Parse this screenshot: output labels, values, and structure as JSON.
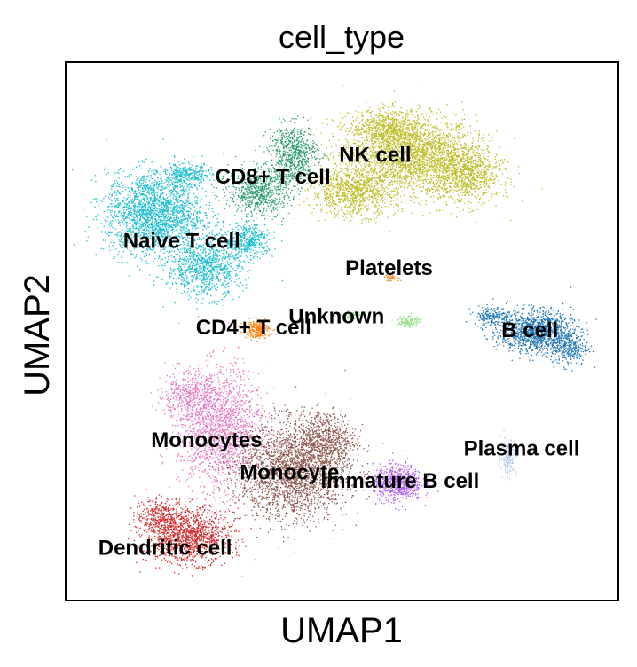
{
  "chart_data": {
    "type": "scatter",
    "title": "cell_type",
    "xlabel": "UMAP1",
    "ylabel": "UMAP2",
    "xlim": [
      0,
      100
    ],
    "ylim": [
      0,
      100
    ],
    "grid": false,
    "legend": "on data",
    "clusters": [
      {
        "name": "NK cell",
        "label_x": 56.0,
        "label_y": 82.5,
        "color": "#bcbd22"
      },
      {
        "name": "CD8+ T cell",
        "label_x": 37.5,
        "label_y": 78.5,
        "color": "#279e68"
      },
      {
        "name": "Naive T cell",
        "label_x": 21.0,
        "label_y": 66.5,
        "color": "#17becf"
      },
      {
        "name": "Platelets",
        "label_x": 58.5,
        "label_y": 61.5,
        "color": "#ff7f0e"
      },
      {
        "name": "Unknown",
        "label_x": 49.0,
        "label_y": 52.5,
        "color": "#98df8a"
      },
      {
        "name": "CD4+ T cell",
        "label_x": 34.0,
        "label_y": 50.5,
        "color": "#ff7f0e"
      },
      {
        "name": "B cell",
        "label_x": 84.0,
        "label_y": 50.0,
        "color": "#1f77b4"
      },
      {
        "name": "Monocytes",
        "label_x": 25.5,
        "label_y": 29.5,
        "color": "#e377c2"
      },
      {
        "name": "Plasma cell",
        "label_x": 82.5,
        "label_y": 28.0,
        "color": "#aec7e8"
      },
      {
        "name": "Monocyte",
        "label_x": 40.5,
        "label_y": 23.5,
        "color": "#8c564b"
      },
      {
        "name": "Immature B cell",
        "label_x": 60.5,
        "label_y": 22.0,
        "color": "#b05cf0"
      },
      {
        "name": "Dendritic cell",
        "label_x": 18.0,
        "label_y": 9.5,
        "color": "#d62728"
      }
    ]
  }
}
